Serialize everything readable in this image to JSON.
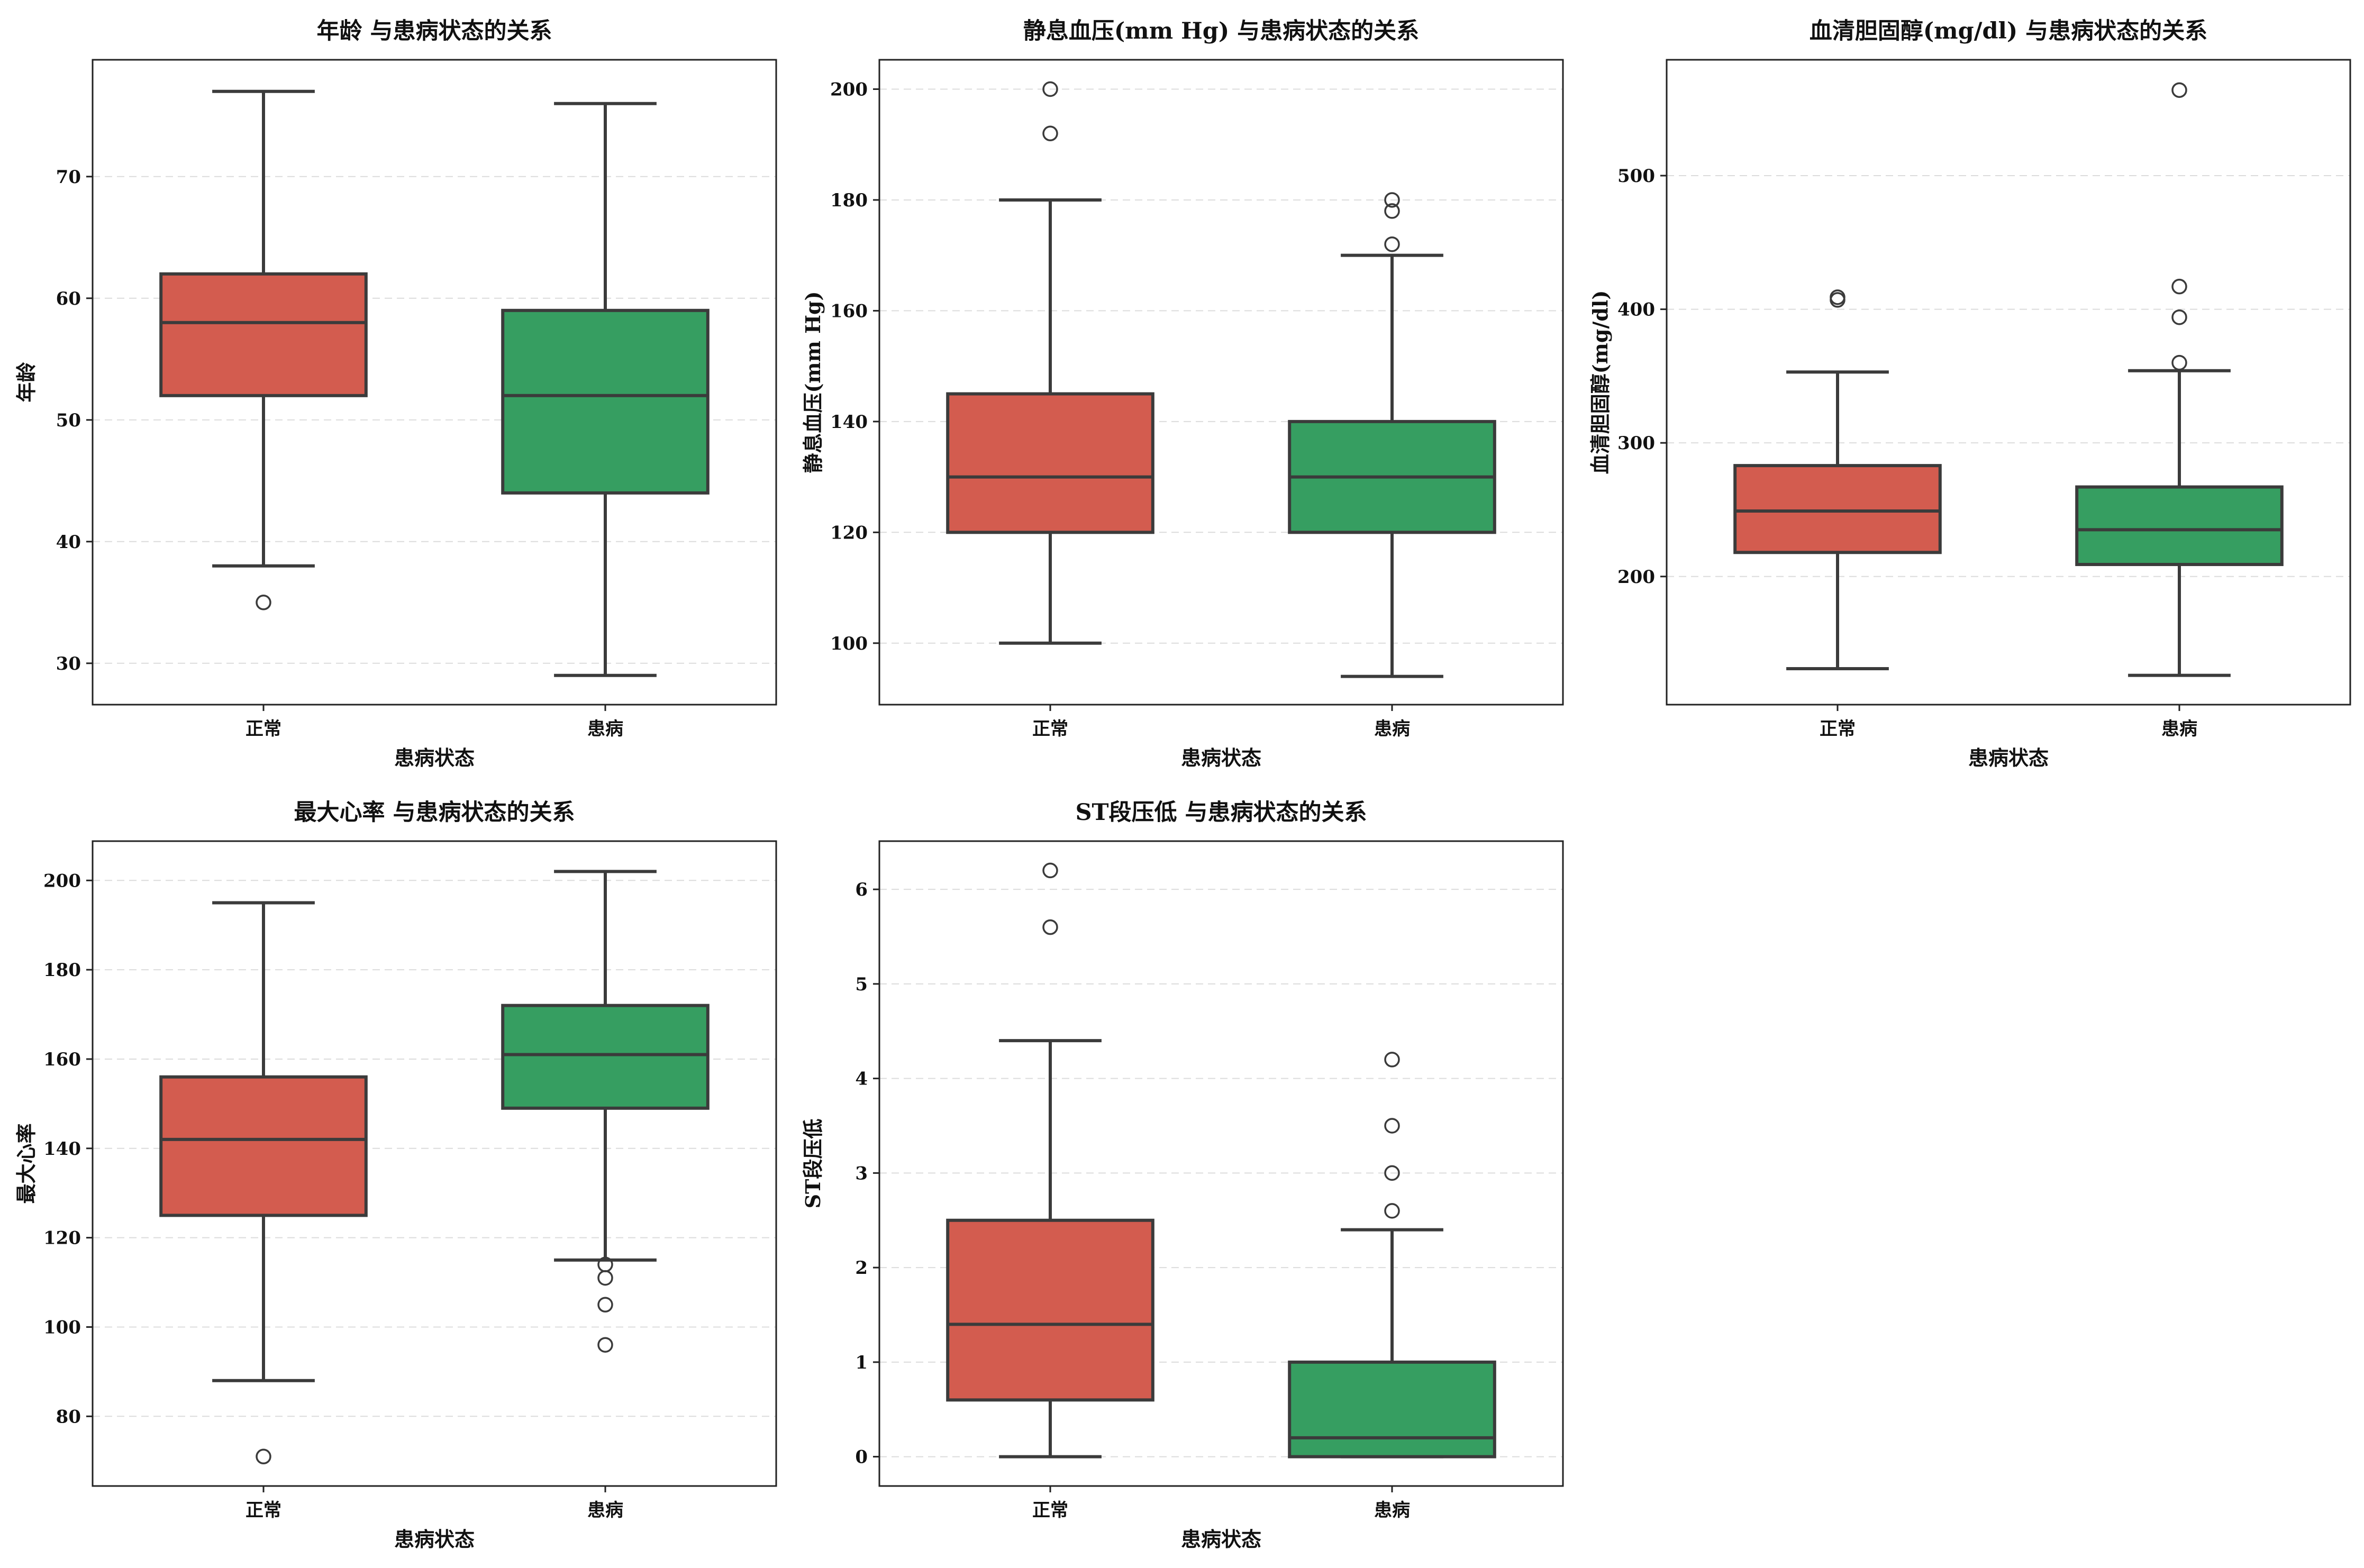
{
  "colors": {
    "normal": "#d35c4f",
    "disease": "#369e61"
  },
  "chart_data": [
    {
      "type": "box",
      "title": "年龄 与患病状态的关系",
      "xlabel": "患病状态",
      "ylabel": "年龄",
      "categories": [
        "正常",
        "患病"
      ],
      "ylim": [
        26.6,
        79.6
      ],
      "yticks": [
        30,
        40,
        50,
        60,
        70
      ],
      "boxes": [
        {
          "q1": 52,
          "median": 58,
          "q3": 62,
          "whisker_low": 38,
          "whisker_high": 77,
          "fliers": [
            35
          ]
        },
        {
          "q1": 44,
          "median": 52,
          "q3": 59,
          "whisker_low": 29,
          "whisker_high": 76,
          "fliers": []
        }
      ]
    },
    {
      "type": "box",
      "title": "静息血压(mm Hg) 与患病状态的关系",
      "xlabel": "患病状态",
      "ylabel": "静息血压(mm Hg)",
      "categories": [
        "正常",
        "患病"
      ],
      "ylim": [
        88.9,
        205.3
      ],
      "yticks": [
        100,
        120,
        140,
        160,
        180,
        200
      ],
      "boxes": [
        {
          "q1": 120,
          "median": 130,
          "q3": 145,
          "whisker_low": 100,
          "whisker_high": 180,
          "fliers": [
            192,
            200
          ]
        },
        {
          "q1": 120,
          "median": 130,
          "q3": 140,
          "whisker_low": 94,
          "whisker_high": 170,
          "fliers": [
            172,
            178,
            180
          ]
        }
      ]
    },
    {
      "type": "box",
      "title": "血清胆固醇(mg/dl) 与患病状态的关系",
      "xlabel": "患病状态",
      "ylabel": "血清胆固醇(mg/dl)",
      "categories": [
        "正常",
        "患病"
      ],
      "ylim": [
        104.1,
        586.7
      ],
      "yticks": [
        200,
        300,
        400,
        500
      ],
      "boxes": [
        {
          "q1": 218,
          "median": 249,
          "q3": 283,
          "whisker_low": 131,
          "whisker_high": 353,
          "fliers": [
            407,
            409
          ]
        },
        {
          "q1": 209,
          "median": 235,
          "q3": 267,
          "whisker_low": 126,
          "whisker_high": 354,
          "fliers": [
            360,
            394,
            417,
            564
          ]
        }
      ]
    },
    {
      "type": "box",
      "title": "最大心率 与患病状态的关系",
      "xlabel": "患病状态",
      "ylabel": "最大心率",
      "categories": [
        "正常",
        "患病"
      ],
      "ylim": [
        64.4,
        208.8
      ],
      "yticks": [
        80,
        100,
        120,
        140,
        160,
        180,
        200
      ],
      "boxes": [
        {
          "q1": 125,
          "median": 142,
          "q3": 156,
          "whisker_low": 88,
          "whisker_high": 195,
          "fliers": [
            71
          ]
        },
        {
          "q1": 149,
          "median": 161,
          "q3": 172,
          "whisker_low": 115,
          "whisker_high": 202,
          "fliers": [
            96,
            105,
            111,
            114
          ]
        }
      ]
    },
    {
      "type": "box",
      "title": "ST段压低 与患病状态的关系",
      "xlabel": "患病状态",
      "ylabel": "ST段压低",
      "categories": [
        "正常",
        "患病"
      ],
      "ylim": [
        -0.31,
        6.51
      ],
      "yticks": [
        0,
        1,
        2,
        3,
        4,
        5,
        6
      ],
      "boxes": [
        {
          "q1": 0.6,
          "median": 1.4,
          "q3": 2.5,
          "whisker_low": 0,
          "whisker_high": 4.4,
          "fliers": [
            5.6,
            6.2
          ]
        },
        {
          "q1": 0,
          "median": 0.2,
          "q3": 1.0,
          "whisker_low": 0,
          "whisker_high": 2.4,
          "fliers": [
            2.6,
            3.0,
            3.5,
            4.2
          ]
        }
      ]
    }
  ]
}
